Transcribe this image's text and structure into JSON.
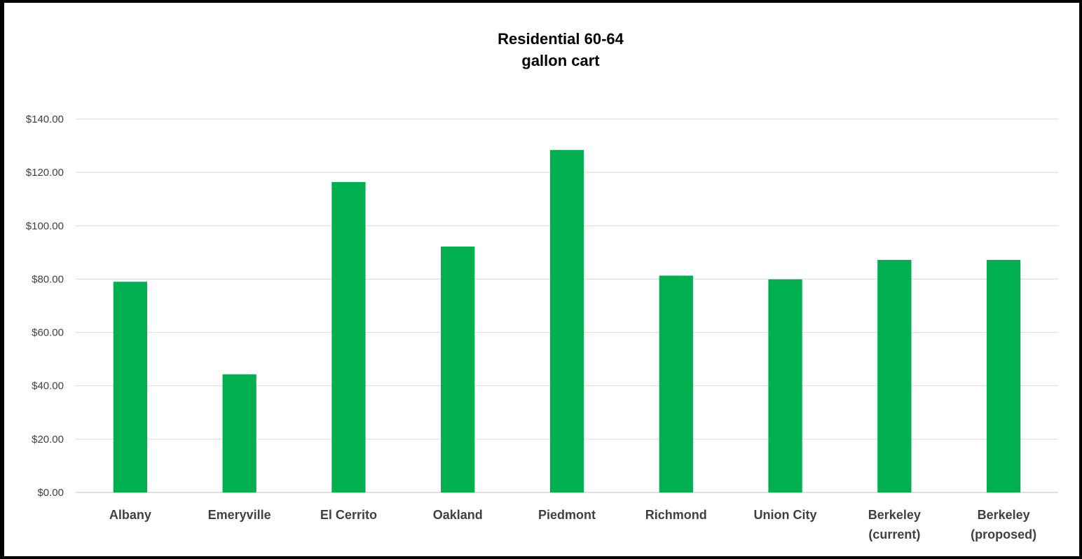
{
  "chart_data": {
    "type": "bar",
    "title_lines": [
      "Residential 60-64",
      "gallon cart"
    ],
    "categories": [
      [
        "Albany"
      ],
      [
        "Emeryville"
      ],
      [
        "El Cerrito"
      ],
      [
        "Oakland"
      ],
      [
        "Piedmont"
      ],
      [
        "Richmond"
      ],
      [
        "Union City"
      ],
      [
        "Berkeley",
        "(current)"
      ],
      [
        "Berkeley",
        "(proposed)"
      ]
    ],
    "values": [
      79.0,
      44.3,
      116.4,
      92.2,
      128.4,
      81.3,
      79.9,
      87.2,
      87.2
    ],
    "ylim": [
      0,
      140
    ],
    "ytick_values": [
      0,
      20,
      40,
      60,
      80,
      100,
      120,
      140
    ],
    "ytick_labels": [
      "$0.00",
      "$20.00",
      "$40.00",
      "$60.00",
      "$80.00",
      "$100.00",
      "$120.00",
      "$140.00"
    ],
    "grid": true,
    "bar_color": "#00b050",
    "legend": "none"
  }
}
